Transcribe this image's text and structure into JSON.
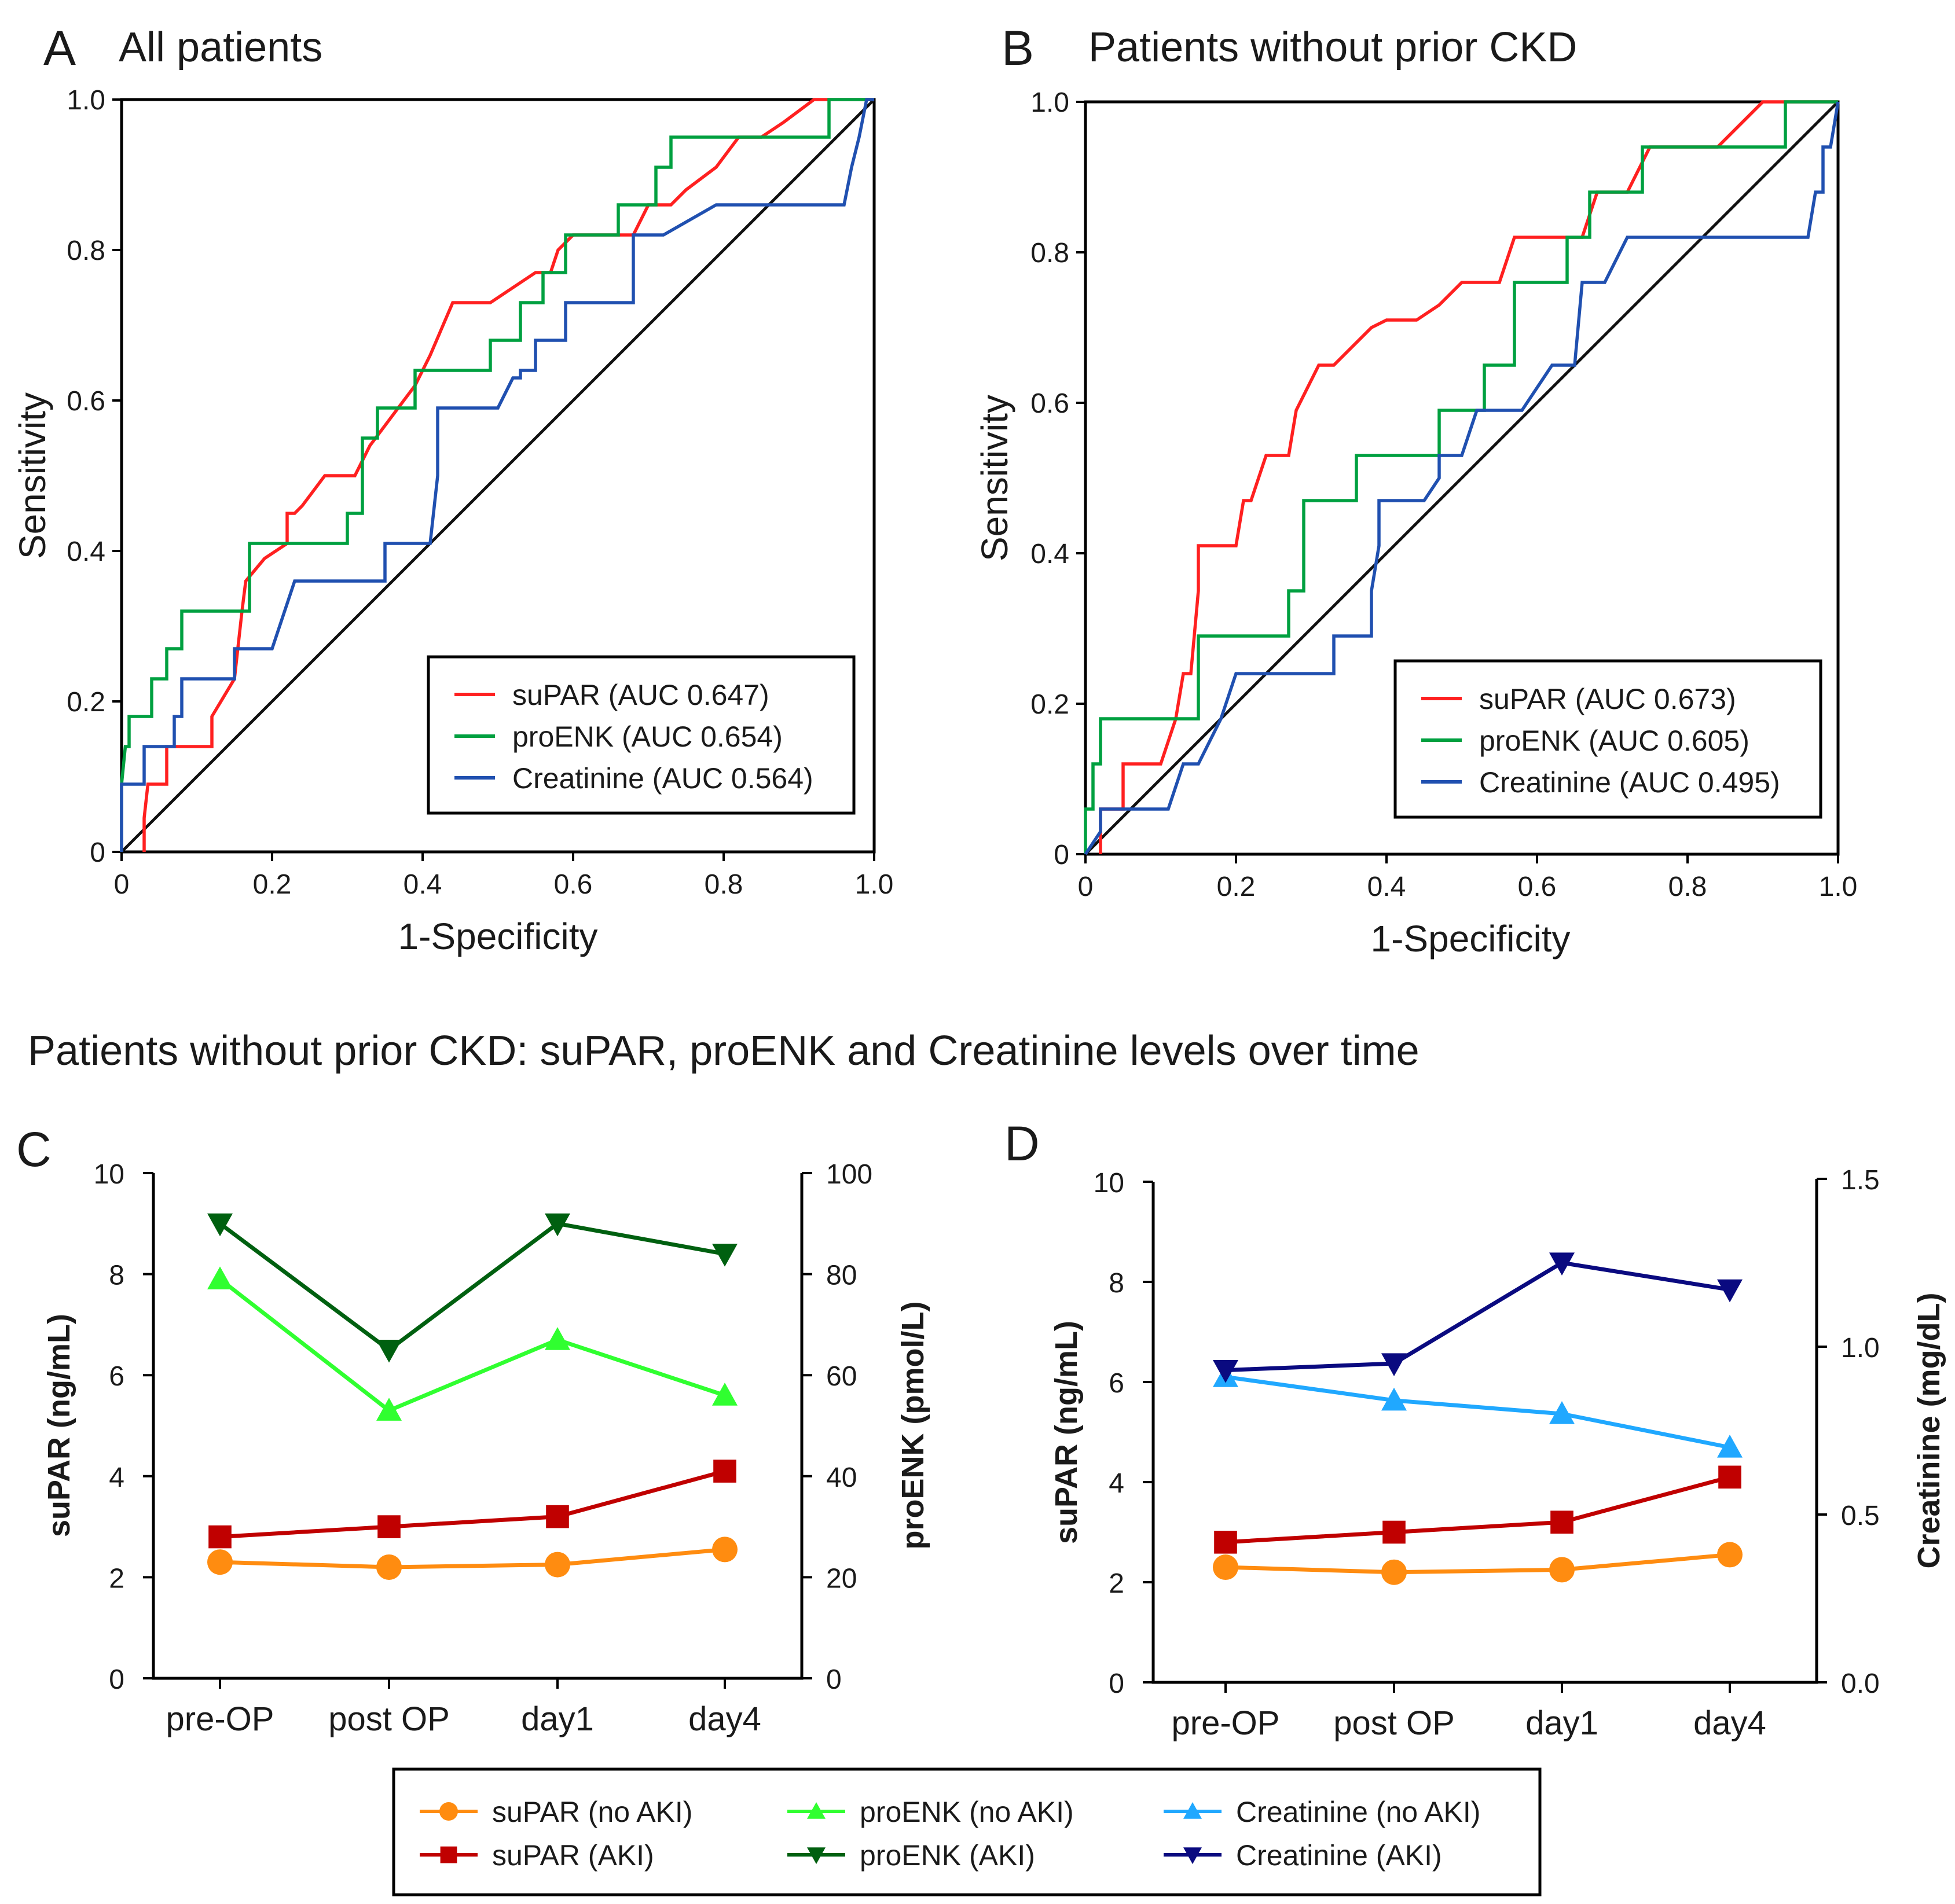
{
  "section_title": "Patients without prior CKD: suPAR, proENK and Creatinine levels over time",
  "chart_data": [
    {
      "panel": "A",
      "type": "line",
      "title": "All patients",
      "xlabel": "1-Specificity",
      "ylabel": "Sensitivity",
      "xlim": [
        0,
        1
      ],
      "ylim": [
        0,
        1
      ],
      "xticks": [
        "0",
        "0.2",
        "0.4",
        "0.6",
        "0.8",
        "1.0"
      ],
      "yticks": [
        "0",
        "0.2",
        "0.4",
        "0.6",
        "0.8",
        "1.0"
      ],
      "legend_position": "bottom-right",
      "series": [
        {
          "name": "suPAR (AUC 0.647)",
          "color": "#ff2020",
          "x": [
            0.03,
            0.03,
            0.035,
            0.06,
            0.06,
            0.09,
            0.12,
            0.12,
            0.15,
            0.16,
            0.165,
            0.19,
            0.22,
            0.22,
            0.23,
            0.24,
            0.27,
            0.3,
            0.31,
            0.33,
            0.36,
            0.39,
            0.41,
            0.44,
            0.46,
            0.49,
            0.52,
            0.55,
            0.57,
            0.58,
            0.6,
            0.62,
            0.65,
            0.68,
            0.7,
            0.73,
            0.75,
            0.79,
            0.82,
            0.85,
            0.88,
            0.92,
            0.94,
            0.97,
            0.99,
            1.0
          ],
          "y": [
            0,
            0.045,
            0.09,
            0.09,
            0.14,
            0.14,
            0.14,
            0.18,
            0.23,
            0.32,
            0.36,
            0.39,
            0.41,
            0.45,
            0.45,
            0.46,
            0.5,
            0.5,
            0.5,
            0.54,
            0.58,
            0.62,
            0.66,
            0.73,
            0.73,
            0.73,
            0.75,
            0.77,
            0.77,
            0.8,
            0.82,
            0.82,
            0.82,
            0.82,
            0.86,
            0.86,
            0.88,
            0.91,
            0.95,
            0.95,
            0.97,
            1.0,
            1.0,
            1.0,
            1.0,
            1.0
          ]
        },
        {
          "name": "proENK (AUC 0.654)",
          "color": "#00a040",
          "x": [
            0,
            0,
            0.005,
            0.01,
            0.01,
            0.04,
            0.04,
            0.06,
            0.06,
            0.08,
            0.08,
            0.17,
            0.17,
            0.2,
            0.3,
            0.3,
            0.32,
            0.32,
            0.34,
            0.34,
            0.36,
            0.39,
            0.39,
            0.49,
            0.49,
            0.53,
            0.53,
            0.56,
            0.56,
            0.59,
            0.59,
            0.66,
            0.66,
            0.71,
            0.71,
            0.73,
            0.73,
            0.75,
            0.75,
            0.94,
            0.94,
            0.97,
            1.0
          ],
          "y": [
            0,
            0.09,
            0.14,
            0.14,
            0.18,
            0.18,
            0.23,
            0.23,
            0.27,
            0.27,
            0.32,
            0.32,
            0.41,
            0.41,
            0.41,
            0.45,
            0.45,
            0.55,
            0.55,
            0.59,
            0.59,
            0.59,
            0.64,
            0.64,
            0.68,
            0.68,
            0.73,
            0.73,
            0.77,
            0.77,
            0.82,
            0.82,
            0.86,
            0.86,
            0.91,
            0.91,
            0.95,
            0.95,
            0.95,
            0.95,
            1.0,
            1.0,
            1.0
          ]
        },
        {
          "name": "Creatinine (AUC 0.564)",
          "color": "#2050b0",
          "x": [
            0,
            0,
            0.03,
            0.03,
            0.07,
            0.07,
            0.08,
            0.08,
            0.15,
            0.15,
            0.2,
            0.23,
            0.35,
            0.35,
            0.41,
            0.41,
            0.42,
            0.42,
            0.5,
            0.52,
            0.53,
            0.53,
            0.55,
            0.55,
            0.59,
            0.59,
            0.62,
            0.62,
            0.68,
            0.68,
            0.72,
            0.79,
            0.96,
            0.96,
            0.97,
            0.97,
            0.98,
            0.98,
            0.99,
            1.0
          ],
          "y": [
            0,
            0.09,
            0.09,
            0.14,
            0.14,
            0.18,
            0.18,
            0.23,
            0.23,
            0.27,
            0.27,
            0.36,
            0.36,
            0.41,
            0.41,
            0.41,
            0.5,
            0.59,
            0.59,
            0.63,
            0.63,
            0.64,
            0.64,
            0.68,
            0.68,
            0.73,
            0.73,
            0.73,
            0.73,
            0.82,
            0.82,
            0.86,
            0.86,
            0.86,
            0.91,
            0.91,
            0.95,
            0.95,
            1.0,
            1.0
          ]
        },
        {
          "name": "reference",
          "color": "#111111",
          "x": [
            0,
            1
          ],
          "y": [
            0,
            1
          ]
        }
      ]
    },
    {
      "panel": "B",
      "type": "line",
      "title": "Patients without prior CKD",
      "xlabel": "1-Specificity",
      "ylabel": "Sensitivity",
      "xlim": [
        0,
        1
      ],
      "ylim": [
        0,
        1
      ],
      "xticks": [
        "0",
        "0.2",
        "0.4",
        "0.6",
        "0.8",
        "1.0"
      ],
      "yticks": [
        "0",
        "0.2",
        "0.4",
        "0.6",
        "0.8",
        "1.0"
      ],
      "legend_position": "bottom-right",
      "series": [
        {
          "name": "suPAR (AUC 0.673)",
          "color": "#ff2020",
          "x": [
            0.02,
            0.02,
            0.05,
            0.05,
            0.1,
            0.1,
            0.12,
            0.13,
            0.14,
            0.15,
            0.15,
            0.2,
            0.21,
            0.22,
            0.24,
            0.25,
            0.27,
            0.28,
            0.31,
            0.33,
            0.36,
            0.38,
            0.4,
            0.44,
            0.47,
            0.5,
            0.53,
            0.55,
            0.57,
            0.59,
            0.62,
            0.64,
            0.66,
            0.68,
            0.69,
            0.71,
            0.72,
            0.75,
            0.78,
            0.81,
            0.84,
            0.87,
            0.9,
            0.92,
            0.95,
            0.97,
            1.0
          ],
          "y": [
            0,
            0.06,
            0.06,
            0.12,
            0.12,
            0.12,
            0.18,
            0.24,
            0.24,
            0.35,
            0.41,
            0.41,
            0.47,
            0.47,
            0.53,
            0.53,
            0.53,
            0.59,
            0.65,
            0.65,
            0.68,
            0.7,
            0.71,
            0.71,
            0.73,
            0.76,
            0.76,
            0.76,
            0.82,
            0.82,
            0.82,
            0.82,
            0.82,
            0.88,
            0.88,
            0.88,
            0.88,
            0.94,
            0.94,
            0.94,
            0.94,
            0.97,
            1.0,
            1.0,
            1.0,
            1.0,
            1.0
          ]
        },
        {
          "name": "proENK (AUC 0.605)",
          "color": "#00a040",
          "x": [
            0,
            0,
            0.01,
            0.01,
            0.02,
            0.02,
            0.15,
            0.15,
            0.27,
            0.27,
            0.29,
            0.29,
            0.31,
            0.31,
            0.36,
            0.36,
            0.43,
            0.43,
            0.47,
            0.47,
            0.53,
            0.53,
            0.57,
            0.57,
            0.64,
            0.64,
            0.67,
            0.67,
            0.71,
            0.71,
            0.74,
            0.74,
            0.93,
            0.93,
            0.96,
            1.0
          ],
          "y": [
            0,
            0.06,
            0.06,
            0.12,
            0.12,
            0.18,
            0.18,
            0.29,
            0.29,
            0.35,
            0.35,
            0.47,
            0.47,
            0.47,
            0.47,
            0.53,
            0.53,
            0.53,
            0.53,
            0.59,
            0.59,
            0.65,
            0.65,
            0.76,
            0.76,
            0.82,
            0.82,
            0.88,
            0.88,
            0.88,
            0.88,
            0.94,
            0.94,
            1.0,
            1.0,
            1.0
          ]
        },
        {
          "name": "Creatinine (AUC 0.495)",
          "color": "#2050b0",
          "x": [
            0,
            0,
            0.02,
            0.02,
            0.05,
            0.11,
            0.13,
            0.15,
            0.15,
            0.18,
            0.2,
            0.24,
            0.33,
            0.33,
            0.38,
            0.38,
            0.39,
            0.39,
            0.43,
            0.45,
            0.47,
            0.47,
            0.5,
            0.52,
            0.53,
            0.58,
            0.62,
            0.62,
            0.65,
            0.66,
            0.67,
            0.69,
            0.72,
            0.75,
            0.96,
            0.97,
            0.97,
            0.98,
            0.98,
            0.99,
            1.0
          ],
          "y": [
            0,
            0,
            0.03,
            0.06,
            0.06,
            0.06,
            0.12,
            0.12,
            0.12,
            0.18,
            0.24,
            0.24,
            0.24,
            0.29,
            0.29,
            0.35,
            0.41,
            0.47,
            0.47,
            0.47,
            0.5,
            0.53,
            0.53,
            0.59,
            0.59,
            0.59,
            0.65,
            0.65,
            0.65,
            0.76,
            0.76,
            0.76,
            0.82,
            0.82,
            0.82,
            0.88,
            0.88,
            0.88,
            0.94,
            0.94,
            1.0
          ]
        },
        {
          "name": "reference",
          "color": "#111111",
          "x": [
            0,
            1
          ],
          "y": [
            0,
            1
          ]
        }
      ]
    },
    {
      "panel": "C",
      "type": "line",
      "categories": [
        "pre-OP",
        "post OP",
        "day1",
        "day4"
      ],
      "ylabel": "suPAR (ng/mL)",
      "ylabel_right": "proENK (pmol/L)",
      "ylim": [
        0,
        10
      ],
      "ylim_right": [
        0,
        100
      ],
      "yticks": [
        "0",
        "2",
        "4",
        "6",
        "8",
        "10"
      ],
      "yticks_right": [
        "0",
        "20",
        "40",
        "60",
        "80",
        "100"
      ],
      "series": [
        {
          "name": "suPAR (no AKI)",
          "axis": "left",
          "color": "#ff8c10",
          "marker": "circle",
          "values": [
            2.3,
            2.2,
            2.25,
            2.55
          ]
        },
        {
          "name": "suPAR (AKI)",
          "axis": "left",
          "color": "#c00000",
          "marker": "square",
          "values": [
            2.8,
            3.0,
            3.2,
            4.1
          ]
        },
        {
          "name": "proENK (no AKI)",
          "axis": "right",
          "color": "#30ff30",
          "marker": "triangle-up",
          "values": [
            79,
            53,
            67,
            56
          ]
        },
        {
          "name": "proENK (AKI)",
          "axis": "right",
          "color": "#006010",
          "marker": "triangle-down",
          "values": [
            90,
            65,
            90,
            84
          ]
        }
      ]
    },
    {
      "panel": "D",
      "type": "line",
      "categories": [
        "pre-OP",
        "post OP",
        "day1",
        "day4"
      ],
      "ylabel": "suPAR (ng/mL)",
      "ylabel_right": "Creatinine (mg/dL)",
      "ylim": [
        0,
        10
      ],
      "ylim_right": [
        0,
        1.5
      ],
      "yticks": [
        "0",
        "2",
        "4",
        "6",
        "8",
        "10"
      ],
      "yticks_right": [
        "0.0",
        "0.5",
        "1.0",
        "1.5"
      ],
      "series": [
        {
          "name": "suPAR (no AKI)",
          "axis": "left",
          "color": "#ff8c10",
          "marker": "circle",
          "values": [
            2.3,
            2.2,
            2.25,
            2.55
          ]
        },
        {
          "name": "suPAR (AKI)",
          "axis": "left",
          "color": "#c00000",
          "marker": "square",
          "values": [
            2.8,
            3.0,
            3.2,
            4.1
          ]
        },
        {
          "name": "Creatinine (no AKI)",
          "axis": "right",
          "color": "#20a8ff",
          "marker": "triangle-up",
          "values": [
            0.91,
            0.84,
            0.8,
            0.7
          ]
        },
        {
          "name": "Creatinine (AKI)",
          "axis": "right",
          "color": "#0a0a80",
          "marker": "triangle-down",
          "values": [
            0.93,
            0.95,
            1.25,
            1.17
          ]
        }
      ]
    }
  ],
  "legend_bottom": [
    {
      "name": "suPAR (no AKI)",
      "color": "#ff8c10",
      "marker": "circle"
    },
    {
      "name": "suPAR (AKI)",
      "color": "#c00000",
      "marker": "square"
    },
    {
      "name": "proENK (no AKI)",
      "color": "#30ff30",
      "marker": "triangle-up"
    },
    {
      "name": "proENK (AKI)",
      "color": "#006010",
      "marker": "triangle-down"
    },
    {
      "name": "Creatinine (no AKI)",
      "color": "#20a8ff",
      "marker": "triangle-up"
    },
    {
      "name": "Creatinine (AKI)",
      "color": "#0a0a80",
      "marker": "triangle-down"
    }
  ]
}
